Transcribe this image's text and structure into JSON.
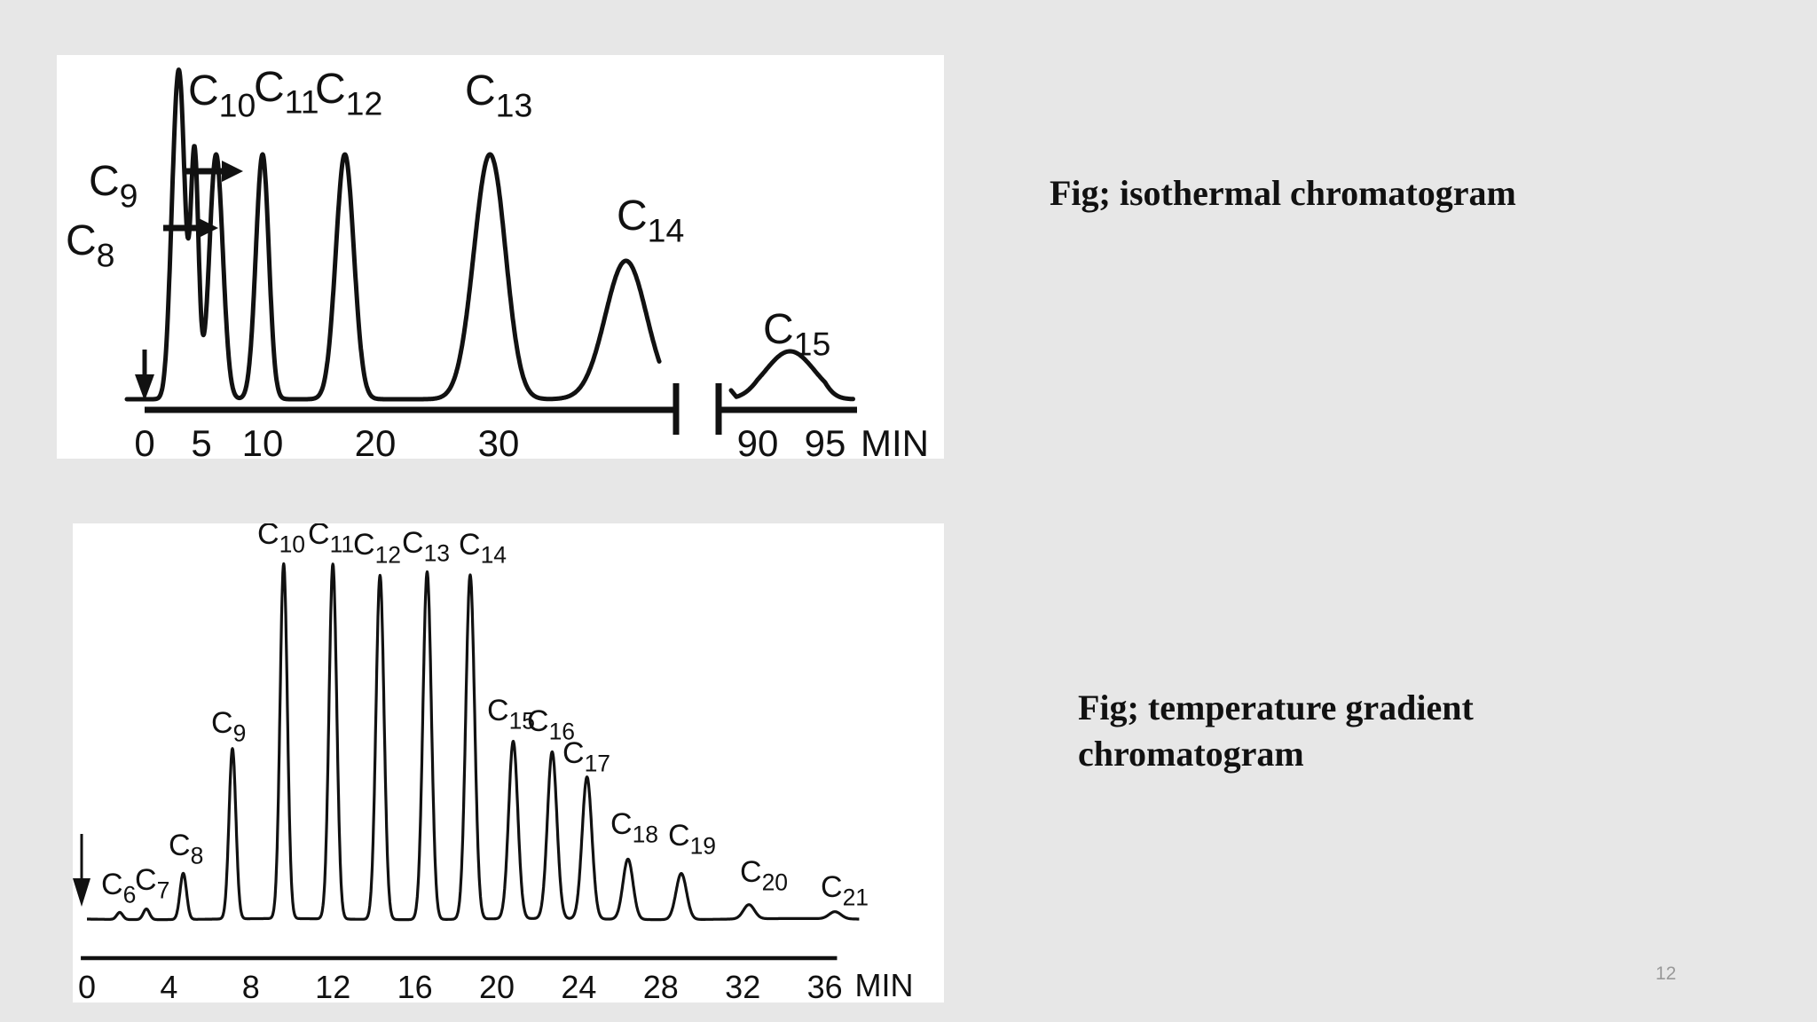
{
  "chart_data": [
    {
      "type": "line",
      "title": "",
      "x_unit": "MIN",
      "xticks": [
        "0",
        "5",
        "10",
        "20",
        "30",
        "90",
        "95"
      ],
      "xlim": [
        0,
        99
      ],
      "axis_break": [
        45,
        87
      ],
      "injection_marker_x": 0,
      "peaks": [
        {
          "name": "C8",
          "sub": "8",
          "time": 2.6,
          "height": 0.6,
          "width": 0.45,
          "arrow": true
        },
        {
          "name": "C9",
          "sub": "9",
          "time": 3.2,
          "height": 0.92,
          "width": 0.45,
          "arrow": true
        },
        {
          "name": "C10",
          "sub": "10",
          "time": 4.4,
          "height": 0.92,
          "width": 0.35
        },
        {
          "name": "C10b",
          "sub": "",
          "time": 6.2,
          "height": 0.92,
          "width": 0.55,
          "unlabeled": true
        },
        {
          "name": "C11",
          "sub": "11",
          "time": 10.0,
          "height": 0.92,
          "width": 0.55
        },
        {
          "name": "C12",
          "sub": "12",
          "time": 17.3,
          "height": 0.92,
          "width": 0.8
        },
        {
          "name": "C13",
          "sub": "13",
          "time": 29.3,
          "height": 0.92,
          "width": 1.3
        },
        {
          "name": "C14",
          "sub": "14",
          "time": 41.1,
          "height": 0.52,
          "width": 1.8
        },
        {
          "name": "C15",
          "sub": "15",
          "time": 92.4,
          "height": 0.18,
          "width": 1.8
        }
      ]
    },
    {
      "type": "line",
      "title": "",
      "x_unit": "MIN",
      "xticks": [
        "0",
        "4",
        "8",
        "12",
        "16",
        "20",
        "24",
        "28",
        "32",
        "36"
      ],
      "xlim": [
        0,
        38
      ],
      "injection_marker_x": 0,
      "peaks": [
        {
          "name": "C6",
          "sub": "6",
          "time": 1.6,
          "height": 0.02
        },
        {
          "name": "C7",
          "sub": "7",
          "time": 2.9,
          "height": 0.03
        },
        {
          "name": "C8",
          "sub": "8",
          "time": 4.7,
          "height": 0.13
        },
        {
          "name": "C9",
          "sub": "9",
          "time": 7.1,
          "height": 0.48
        },
        {
          "name": "C10",
          "sub": "10",
          "time": 9.6,
          "height": 1.0
        },
        {
          "name": "C11",
          "sub": "11",
          "time": 12.0,
          "height": 1.0
        },
        {
          "name": "C12",
          "sub": "12",
          "time": 14.3,
          "height": 0.97
        },
        {
          "name": "C13",
          "sub": "13",
          "time": 16.6,
          "height": 0.98
        },
        {
          "name": "C14",
          "sub": "14",
          "time": 18.7,
          "height": 0.97
        },
        {
          "name": "C15",
          "sub": "15",
          "time": 20.8,
          "height": 0.5
        },
        {
          "name": "C16",
          "sub": "16",
          "time": 22.7,
          "height": 0.47
        },
        {
          "name": "C17",
          "sub": "17",
          "time": 24.4,
          "height": 0.4
        },
        {
          "name": "C18",
          "sub": "18",
          "time": 26.4,
          "height": 0.17
        },
        {
          "name": "C19",
          "sub": "19",
          "time": 29.0,
          "height": 0.13
        },
        {
          "name": "C20",
          "sub": "20",
          "time": 32.3,
          "height": 0.04
        },
        {
          "name": "C21",
          "sub": "21",
          "time": 36.5,
          "height": 0.02
        }
      ]
    }
  ],
  "captions": {
    "isothermal": "Fig; isothermal chromatogram",
    "gradient": "Fig; temperature gradient chromatogram"
  },
  "slide_number": "12"
}
